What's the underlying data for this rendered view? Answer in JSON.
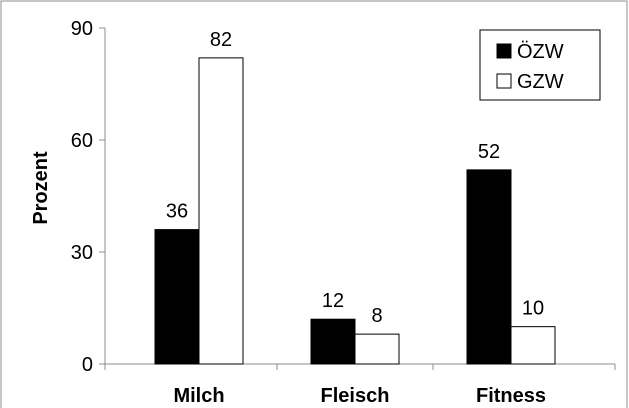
{
  "chart_data": {
    "type": "bar",
    "title": "",
    "xlabel": "",
    "ylabel": "Prozent",
    "ylim": [
      0,
      90
    ],
    "yticks": [
      0,
      30,
      60,
      90
    ],
    "categories": [
      "Milch",
      "Fleisch",
      "Fitness"
    ],
    "series": [
      {
        "name": "ÖZW",
        "values": [
          36,
          12,
          52
        ],
        "color": "#000000"
      },
      {
        "name": "GZW",
        "values": [
          82,
          8,
          10
        ],
        "color": "#ffffff"
      }
    ],
    "data_labels": true,
    "grid": false,
    "legend_position": "top-right"
  }
}
